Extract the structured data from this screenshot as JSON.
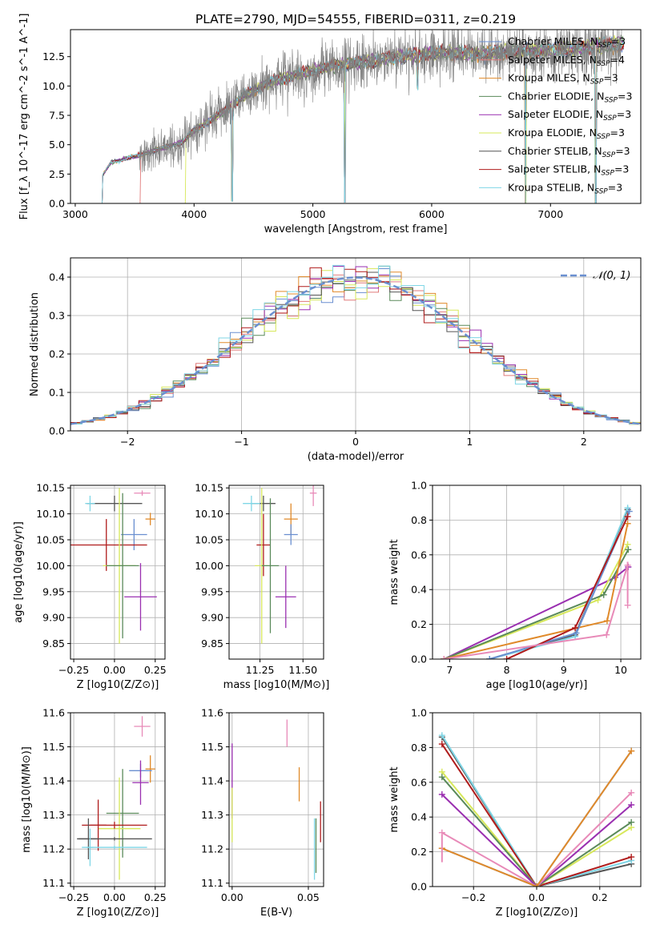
{
  "page": {
    "title": "PLATE=2790, MJD=54555, FIBERID=0311, z=0.219"
  },
  "colors": {
    "chabrier_miles": "#6a8fd0",
    "salpeter_miles": "#e07a7a",
    "kroupa_miles": "#e08a2a",
    "chabrier_elodie": "#5a8a5a",
    "salpeter_elodie": "#9a2fb0",
    "kroupa_elodie": "#d7e85a",
    "chabrier_stelib": "#555555",
    "salpeter_stelib": "#b01c1c",
    "kroupa_stelib": "#7fd6e6",
    "data_spectrum": "#808080",
    "gaussian": "#6a8fd0",
    "pink": "#e88ab8",
    "grid": "#b0b0b0"
  },
  "chart_data": [
    {
      "id": "spectrum",
      "type": "line",
      "title": "PLATE=2790, MJD=54555, FIBERID=0311, z=0.219",
      "xlabel": "wavelength [Angstrom, rest frame]",
      "ylabel": "Flux [f_λ 10^-17 erg cm^-2 s^-1 A^-1]",
      "xlim": [
        2960,
        7760
      ],
      "ylim": [
        0,
        14.8
      ],
      "xticks": [
        "3000",
        "4000",
        "5000",
        "6000",
        "7000"
      ],
      "yticks": [
        "0.0",
        "2.5",
        "5.0",
        "7.5",
        "10.0",
        "12.5"
      ],
      "grid": false,
      "legend_position": "upper-right",
      "legend": [
        {
          "label": "Chabrier MILES, N",
          "sub": "SSP",
          "tail": "=3",
          "color": "#6a8fd0"
        },
        {
          "label": "Salpeter MILES, N",
          "sub": "SSP",
          "tail": "=4",
          "color": "#e07a7a"
        },
        {
          "label": "Kroupa MILES, N",
          "sub": "SSP",
          "tail": "=3",
          "color": "#e08a2a"
        },
        {
          "label": "Chabrier ELODIE, N",
          "sub": "SSP",
          "tail": "=3",
          "color": "#5a8a5a"
        },
        {
          "label": "Salpeter ELODIE, N",
          "sub": "SSP",
          "tail": "=3",
          "color": "#9a2fb0"
        },
        {
          "label": "Kroupa ELODIE, N",
          "sub": "SSP",
          "tail": "=3",
          "color": "#d7e85a"
        },
        {
          "label": "Chabrier STELIB, N",
          "sub": "SSP",
          "tail": "=3",
          "color": "#555555"
        },
        {
          "label": "Salpeter STELIB, N",
          "sub": "SSP",
          "tail": "=3",
          "color": "#b01c1c"
        },
        {
          "label": "Kroupa STELIB, N",
          "sub": "SSP",
          "tail": "=3",
          "color": "#7fd6e6"
        }
      ],
      "model_envelope": {
        "x": [
          3220,
          3300,
          3500,
          3700,
          3900,
          4000,
          4200,
          4400,
          4600,
          4800,
          5000,
          5200,
          5400,
          5600,
          5800,
          6000,
          6200,
          6400,
          6600,
          6800,
          7000,
          7200,
          7400,
          7600
        ],
        "y": [
          2.2,
          3.5,
          4.0,
          4.6,
          5.2,
          6.2,
          7.5,
          9.0,
          10.2,
          10.8,
          11.3,
          11.8,
          12.0,
          12.3,
          12.6,
          12.8,
          12.8,
          12.7,
          12.9,
          13.0,
          13.1,
          13.2,
          13.4,
          13.6
        ]
      },
      "model_starts": [
        {
          "name": "Kroupa STELIB",
          "x_start": 3220
        },
        {
          "name": "Salpeter MILES",
          "x_start": 3540
        },
        {
          "name": "Kroupa ELODIE",
          "x_start": 3920
        }
      ],
      "spectrum_range": [
        3540,
        7600
      ],
      "dips": [
        {
          "x": 4320,
          "y": 0.2
        },
        {
          "x": 5270,
          "y": 0.1
        },
        {
          "x": 5880,
          "y": 10.0
        },
        {
          "x": 6790,
          "y": 0.0
        },
        {
          "x": 7380,
          "y": 0.0
        }
      ]
    },
    {
      "id": "residuals",
      "type": "bar",
      "xlabel": "(data-model)/error",
      "ylabel": "Normed distribution",
      "xlim": [
        -2.5,
        2.5
      ],
      "ylim": [
        0,
        0.45
      ],
      "xticks": [
        "−2",
        "−1",
        "0",
        "1",
        "2"
      ],
      "yticks": [
        "0.0",
        "0.1",
        "0.2",
        "0.3",
        "0.4"
      ],
      "grid": true,
      "legend_position": "upper-right",
      "legend_label": "𝒩(0, 1)",
      "bin_width": 0.1,
      "reference_curve": "standard normal density"
    },
    {
      "id": "age_vs_Z",
      "type": "scatter",
      "xlabel": "Z [log10(Z/Z⊙)]",
      "ylabel": "age [log10(age/yr)]",
      "xlim": [
        -0.27,
        0.31
      ],
      "ylim": [
        9.82,
        10.155
      ],
      "xticks": [
        "−0.25",
        "0.00",
        "0.25"
      ],
      "yticks": [
        "9.85",
        "9.90",
        "9.95",
        "10.00",
        "10.05",
        "10.10",
        "10.15"
      ],
      "grid": true,
      "points": [
        {
          "x": 0.0,
          "y": 10.12,
          "xerr": 0.17,
          "yerr": 0.015,
          "color": "#555555"
        },
        {
          "x": -0.15,
          "y": 10.12,
          "xerr": 0.03,
          "yerr": 0.015,
          "color": "#7fd6e6"
        },
        {
          "x": 0.17,
          "y": 10.14,
          "xerr": 0.05,
          "yerr": 0.005,
          "color": "#e88ab8"
        },
        {
          "x": 0.22,
          "y": 10.09,
          "xerr": 0.03,
          "yerr": 0.012,
          "color": "#e08a2a"
        },
        {
          "x": 0.12,
          "y": 10.06,
          "xerr": 0.08,
          "yerr": 0.03,
          "color": "#6a8fd0"
        },
        {
          "x": -0.05,
          "y": 10.04,
          "xerr": 0.25,
          "yerr": 0.05,
          "color": "#b01c1c"
        },
        {
          "x": 0.03,
          "y": 10.0,
          "xerr": 0.1,
          "yerr": 0.15,
          "color": "#d7e85a"
        },
        {
          "x": 0.05,
          "y": 10.0,
          "xerr": 0.1,
          "yerr": 0.14,
          "color": "#5a8a5a"
        },
        {
          "x": 0.16,
          "y": 9.94,
          "xerr": 0.1,
          "yerr": 0.065,
          "color": "#9a2fb0"
        }
      ]
    },
    {
      "id": "age_vs_mass",
      "type": "scatter",
      "xlabel": "mass [log10(M/M⊙)]",
      "xlim": [
        11.07,
        11.62
      ],
      "ylim": [
        9.82,
        10.155
      ],
      "xticks": [
        "11.25",
        "11.50"
      ],
      "yticks": [
        "9.85",
        "9.90",
        "9.95",
        "10.00",
        "10.05",
        "10.10",
        "10.15"
      ],
      "grid": true,
      "points": [
        {
          "x": 11.27,
          "y": 10.12,
          "xerr": 0.07,
          "yerr": 0.015,
          "color": "#555555"
        },
        {
          "x": 11.2,
          "y": 10.12,
          "xerr": 0.05,
          "yerr": 0.015,
          "color": "#7fd6e6"
        },
        {
          "x": 11.56,
          "y": 10.14,
          "xerr": 0.02,
          "yerr": 0.025,
          "color": "#e88ab8"
        },
        {
          "x": 11.43,
          "y": 10.09,
          "xerr": 0.04,
          "yerr": 0.03,
          "color": "#e08a2a"
        },
        {
          "x": 11.43,
          "y": 10.06,
          "xerr": 0.04,
          "yerr": 0.02,
          "color": "#6a8fd0"
        },
        {
          "x": 11.27,
          "y": 10.04,
          "xerr": 0.04,
          "yerr": 0.06,
          "color": "#b01c1c"
        },
        {
          "x": 11.26,
          "y": 10.0,
          "xerr": 0.04,
          "yerr": 0.15,
          "color": "#d7e85a"
        },
        {
          "x": 11.31,
          "y": 10.0,
          "xerr": 0.05,
          "yerr": 0.13,
          "color": "#5a8a5a"
        },
        {
          "x": 11.4,
          "y": 9.94,
          "xerr": 0.06,
          "yerr": 0.06,
          "color": "#9a2fb0"
        }
      ]
    },
    {
      "id": "mass_weight_vs_age",
      "type": "line",
      "xlabel": "age [log10(age/yr)]",
      "ylabel": "mass weight",
      "xlim": [
        6.7,
        10.35
      ],
      "ylim": [
        0,
        1.0
      ],
      "xticks": [
        "7",
        "8",
        "9",
        "10"
      ],
      "yticks": [
        "0.0",
        "0.2",
        "0.4",
        "0.6",
        "0.8",
        "1.0"
      ],
      "grid": true,
      "series": [
        {
          "color": "#9a2fb0",
          "x": [
            6.9,
            9.9,
            10.13
          ],
          "y": [
            0.0,
            0.47,
            0.53
          ]
        },
        {
          "color": "#d7e85a",
          "x": [
            6.9,
            9.6,
            10.12
          ],
          "y": [
            0.0,
            0.34,
            0.66
          ]
        },
        {
          "color": "#5a8a5a",
          "x": [
            6.9,
            9.7,
            10.13
          ],
          "y": [
            0.0,
            0.37,
            0.63
          ]
        },
        {
          "color": "#e08a2a",
          "x": [
            6.9,
            9.76,
            10.12
          ],
          "y": [
            0.0,
            0.22,
            0.78
          ]
        },
        {
          "color": "#555555",
          "x": [
            7.7,
            9.2,
            10.12
          ],
          "y": [
            0.0,
            0.14,
            0.86
          ]
        },
        {
          "color": "#7fd6e6",
          "x": [
            7.7,
            9.2,
            10.12
          ],
          "y": [
            0.0,
            0.13,
            0.87
          ]
        },
        {
          "color": "#6a8fd0",
          "x": [
            7.7,
            9.22,
            10.15
          ],
          "y": [
            0.0,
            0.15,
            0.85
          ]
        },
        {
          "color": "#b01c1c",
          "x": [
            8.0,
            9.2,
            10.12
          ],
          "y": [
            0.0,
            0.18,
            0.82
          ]
        },
        {
          "color": "#e88ab8",
          "x": [
            6.9,
            9.75,
            10.12
          ],
          "y": [
            0.0,
            0.14,
            0.54
          ]
        }
      ],
      "pink_errorbar": {
        "x": 10.12,
        "y": 0.44,
        "yerr": 0.12,
        "y_low_marker": 0.31
      }
    },
    {
      "id": "mass_vs_Z",
      "type": "scatter",
      "xlabel": "Z [log10(Z/Z⊙)]",
      "ylabel": "mass [log10(M/M⊙)]",
      "xlim": [
        -0.27,
        0.31
      ],
      "ylim": [
        11.09,
        11.6
      ],
      "xticks": [
        "−0.25",
        "0.00",
        "0.25"
      ],
      "yticks": [
        "11.1",
        "11.2",
        "11.3",
        "11.4",
        "11.5",
        "11.6"
      ],
      "grid": true,
      "points": [
        {
          "x": 0.17,
          "y": 11.56,
          "xerr": 0.05,
          "yerr": 0.03,
          "color": "#e88ab8"
        },
        {
          "x": 0.22,
          "y": 11.435,
          "xerr": 0.03,
          "yerr": 0.04,
          "color": "#e08a2a"
        },
        {
          "x": 0.16,
          "y": 11.43,
          "xerr": 0.07,
          "yerr": 0.02,
          "color": "#6a8fd0"
        },
        {
          "x": 0.16,
          "y": 11.395,
          "xerr": 0.05,
          "yerr": 0.065,
          "color": "#9a2fb0"
        },
        {
          "x": 0.05,
          "y": 11.305,
          "xerr": 0.1,
          "yerr": 0.13,
          "color": "#5a8a5a"
        },
        {
          "x": 0.03,
          "y": 11.26,
          "xerr": 0.13,
          "yerr": 0.15,
          "color": "#d7e85a"
        },
        {
          "x": -0.1,
          "y": 11.27,
          "xerr": 0.05,
          "yerr": 0.075,
          "color": "#b01c1c"
        },
        {
          "x": 0.0,
          "y": 11.27,
          "xerr": 0.2,
          "yerr": 0.01,
          "color": "#b01c1c"
        },
        {
          "x": -0.16,
          "y": 11.23,
          "xerr": 0.06,
          "yerr": 0.06,
          "color": "#555555"
        },
        {
          "x": 0.0,
          "y": 11.23,
          "xerr": 0.23,
          "yerr": 0.005,
          "color": "#555555"
        },
        {
          "x": -0.15,
          "y": 11.205,
          "xerr": 0.02,
          "yerr": 0.055,
          "color": "#7fd6e6"
        },
        {
          "x": 0.0,
          "y": 11.205,
          "xerr": 0.2,
          "yerr": 0.005,
          "color": "#7fd6e6"
        }
      ]
    },
    {
      "id": "mass_vs_ebv",
      "type": "scatter",
      "xlabel": "E(B-V)",
      "xlim": [
        -0.002,
        0.06
      ],
      "ylim": [
        11.09,
        11.6
      ],
      "xticks": [
        "0.00",
        "0.05"
      ],
      "yticks": [
        "11.1",
        "11.2",
        "11.3",
        "11.4",
        "11.5",
        "11.6"
      ],
      "grid": true,
      "points": [
        {
          "x": 0.0,
          "y": 11.4,
          "yerr": 0.11,
          "color": "#9a2fb0"
        },
        {
          "x": 0.0,
          "y": 11.3,
          "yerr": 0.08,
          "color": "#d7e85a"
        },
        {
          "x": 0.036,
          "y": 11.54,
          "yerr": 0.04,
          "color": "#e88ab8"
        },
        {
          "x": 0.044,
          "y": 11.39,
          "yerr": 0.05,
          "color": "#e08a2a"
        },
        {
          "x": 0.054,
          "y": 11.2,
          "yerr": 0.09,
          "color": "#7fd6e6"
        },
        {
          "x": 0.055,
          "y": 11.21,
          "yerr": 0.08,
          "color": "#5a8a5a"
        },
        {
          "x": 0.058,
          "y": 11.28,
          "yerr": 0.06,
          "color": "#b01c1c"
        }
      ]
    },
    {
      "id": "mass_weight_vs_Z",
      "type": "line",
      "xlabel": "Z [log10(Z/Z⊙)]",
      "ylabel": "mass weight",
      "xlim": [
        -0.33,
        0.33
      ],
      "ylim": [
        0,
        1.0
      ],
      "xticks": [
        "−0.2",
        "0.0",
        "0.2"
      ],
      "yticks": [
        "0.0",
        "0.2",
        "0.4",
        "0.6",
        "0.8",
        "1.0"
      ],
      "grid": true,
      "series": [
        {
          "color": "#555555",
          "x": [
            -0.3,
            0.0,
            0.3
          ],
          "y": [
            0.86,
            0.0,
            0.13
          ]
        },
        {
          "color": "#7fd6e6",
          "x": [
            -0.3,
            0.0,
            0.3
          ],
          "y": [
            0.87,
            0.0,
            0.15
          ]
        },
        {
          "color": "#b01c1c",
          "x": [
            -0.3,
            0.0,
            0.3
          ],
          "y": [
            0.82,
            0.0,
            0.17
          ]
        },
        {
          "color": "#d7e85a",
          "x": [
            -0.3,
            0.0,
            0.3
          ],
          "y": [
            0.66,
            0.0,
            0.34
          ]
        },
        {
          "color": "#5a8a5a",
          "x": [
            -0.3,
            0.0,
            0.3
          ],
          "y": [
            0.63,
            0.0,
            0.37
          ]
        },
        {
          "color": "#9a2fb0",
          "x": [
            -0.3,
            0.0,
            0.3
          ],
          "y": [
            0.53,
            0.0,
            0.47
          ]
        },
        {
          "color": "#e88ab8",
          "x": [
            -0.3,
            0.0,
            0.3
          ],
          "y": [
            0.31,
            0.0,
            0.54
          ]
        },
        {
          "color": "#6a8fd0",
          "x": [
            -0.3,
            0.0,
            0.3
          ],
          "y": [
            0.22,
            0.0,
            0.78
          ]
        },
        {
          "color": "#e08a2a",
          "x": [
            -0.3,
            0.0,
            0.3
          ],
          "y": [
            0.22,
            0.0,
            0.78
          ]
        }
      ],
      "pink_errorbar": {
        "x": -0.3,
        "y": 0.22,
        "yerr": 0.08
      }
    }
  ]
}
